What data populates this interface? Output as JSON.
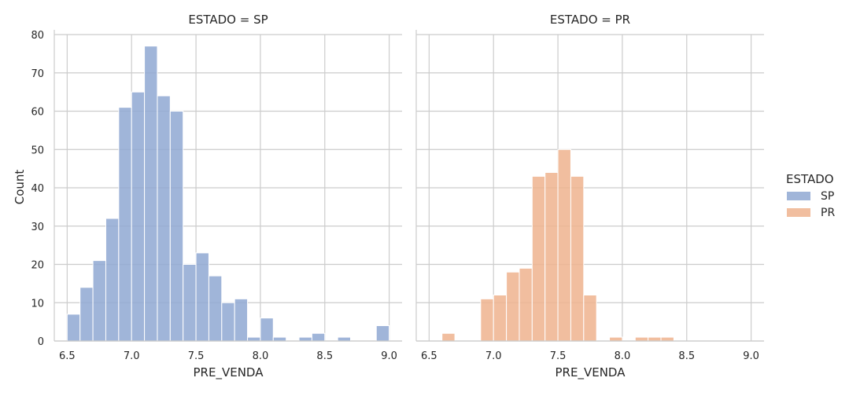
{
  "chart_data": {
    "type": "bar",
    "ylabel": "Count",
    "ylim": [
      0,
      80
    ],
    "y_ticks": [
      0,
      10,
      20,
      30,
      40,
      50,
      60,
      70,
      80
    ],
    "xlim": [
      6.4,
      9.1
    ],
    "x_ticks": [
      "6.5",
      "7.0",
      "7.5",
      "8.0",
      "8.5",
      "9.0"
    ],
    "bin_width": 0.1,
    "grid": true,
    "legend": {
      "title": "ESTADO",
      "placement": "right",
      "entries": [
        {
          "label": "SP",
          "color": "#8fa8d2"
        },
        {
          "label": "PR",
          "color": "#eeb38e"
        }
      ]
    },
    "panels": [
      {
        "title": "ESTADO = SP",
        "xlabel": "PRE_VENDA",
        "series": "SP",
        "bins": [
          {
            "x": 6.5,
            "count": 7
          },
          {
            "x": 6.6,
            "count": 14
          },
          {
            "x": 6.7,
            "count": 21
          },
          {
            "x": 6.8,
            "count": 32
          },
          {
            "x": 6.9,
            "count": 61
          },
          {
            "x": 7.0,
            "count": 65
          },
          {
            "x": 7.1,
            "count": 77
          },
          {
            "x": 7.2,
            "count": 64
          },
          {
            "x": 7.3,
            "count": 60
          },
          {
            "x": 7.4,
            "count": 20
          },
          {
            "x": 7.5,
            "count": 23
          },
          {
            "x": 7.6,
            "count": 17
          },
          {
            "x": 7.7,
            "count": 10
          },
          {
            "x": 7.8,
            "count": 11
          },
          {
            "x": 7.9,
            "count": 1
          },
          {
            "x": 8.0,
            "count": 6
          },
          {
            "x": 8.1,
            "count": 1
          },
          {
            "x": 8.2,
            "count": 0
          },
          {
            "x": 8.3,
            "count": 1
          },
          {
            "x": 8.4,
            "count": 2
          },
          {
            "x": 8.5,
            "count": 0
          },
          {
            "x": 8.6,
            "count": 1
          },
          {
            "x": 8.7,
            "count": 0
          },
          {
            "x": 8.8,
            "count": 0
          },
          {
            "x": 8.9,
            "count": 4
          }
        ]
      },
      {
        "title": "ESTADO = PR",
        "xlabel": "PRE_VENDA",
        "series": "PR",
        "bins": [
          {
            "x": 6.6,
            "count": 2
          },
          {
            "x": 6.7,
            "count": 0
          },
          {
            "x": 6.8,
            "count": 0
          },
          {
            "x": 6.9,
            "count": 11
          },
          {
            "x": 7.0,
            "count": 12
          },
          {
            "x": 7.1,
            "count": 18
          },
          {
            "x": 7.2,
            "count": 19
          },
          {
            "x": 7.3,
            "count": 43
          },
          {
            "x": 7.4,
            "count": 44
          },
          {
            "x": 7.5,
            "count": 50
          },
          {
            "x": 7.6,
            "count": 43
          },
          {
            "x": 7.7,
            "count": 12
          },
          {
            "x": 7.8,
            "count": 0
          },
          {
            "x": 7.9,
            "count": 1
          },
          {
            "x": 8.0,
            "count": 0
          },
          {
            "x": 8.1,
            "count": 1
          },
          {
            "x": 8.2,
            "count": 1
          },
          {
            "x": 8.3,
            "count": 1
          }
        ]
      }
    ]
  }
}
